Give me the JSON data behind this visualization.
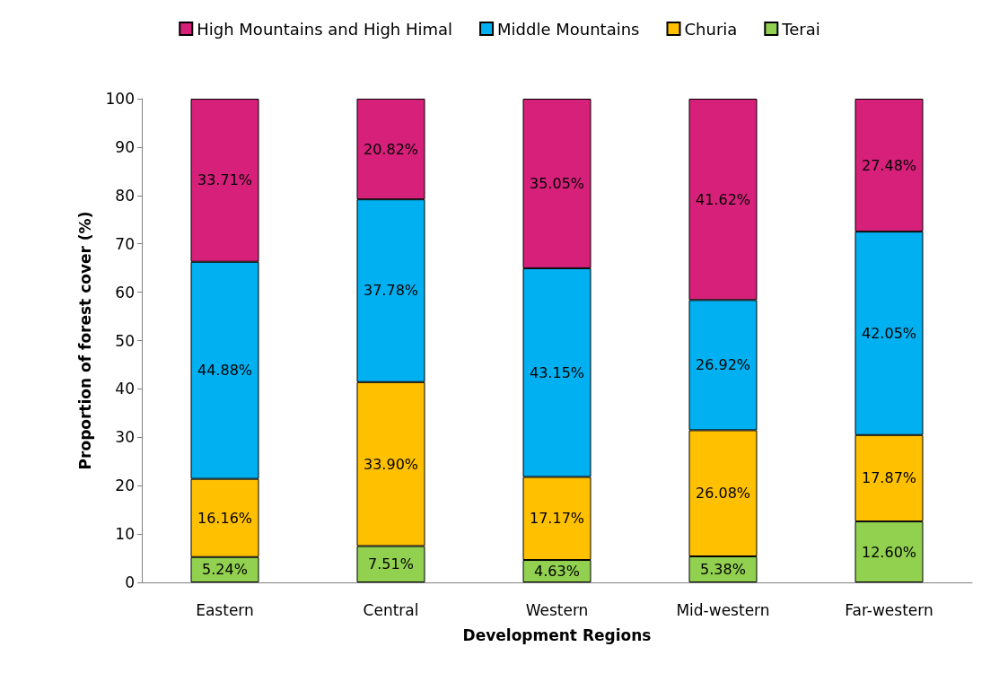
{
  "chart_data": {
    "type": "bar",
    "stacked": true,
    "xlabel": "Development Regions",
    "ylabel": "Proportion of forest cover (%)",
    "categories": [
      "Eastern",
      "Central",
      "Western",
      "Mid-western",
      "Far-western"
    ],
    "series": [
      {
        "name": "Terai",
        "color": "#92d050",
        "values": [
          5.24,
          7.51,
          4.63,
          5.38,
          12.6
        ],
        "value_labels": [
          "5.24%",
          "7.51%",
          "4.63%",
          "5.38%",
          "12.60%"
        ]
      },
      {
        "name": "Churia",
        "color": "#ffc000",
        "values": [
          16.16,
          33.9,
          17.17,
          26.08,
          17.87
        ],
        "value_labels": [
          "16.16%",
          "33.90%",
          "17.17%",
          "26.08%",
          "17.87%"
        ]
      },
      {
        "name": "Middle Mountains",
        "color": "#00b0f0",
        "values": [
          44.88,
          37.78,
          43.15,
          26.92,
          42.05
        ],
        "value_labels": [
          "44.88%",
          "37.78%",
          "43.15%",
          "26.92%",
          "42.05%"
        ]
      },
      {
        "name": "High Mountains and High Himal",
        "color": "#d6207a",
        "values": [
          33.71,
          20.82,
          35.05,
          41.62,
          27.48
        ],
        "value_labels": [
          "33.71%",
          "20.82%",
          "35.05%",
          "41.62%",
          "27.48%"
        ]
      }
    ],
    "ylim": [
      0,
      100
    ],
    "yticks": [
      0,
      10,
      20,
      30,
      40,
      50,
      60,
      70,
      80,
      90,
      100
    ],
    "grid": false,
    "legend": "top"
  }
}
